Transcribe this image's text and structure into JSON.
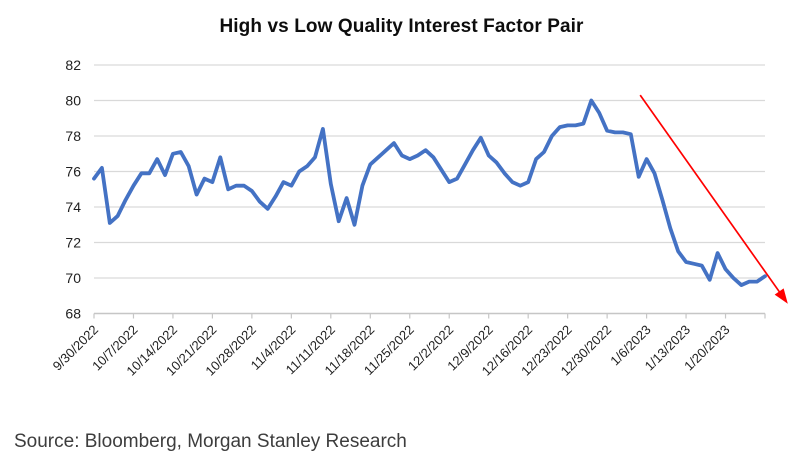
{
  "title": "High vs Low Quality Interest Factor Pair",
  "source_note": "Source: Bloomberg, Morgan Stanley Research",
  "colors": {
    "line": "#4472C4",
    "arrow": "#FF0000",
    "gridline": "#D9D9D9",
    "axis": "#C6C6C6",
    "tick_text": "#1F1F1F",
    "title_text": "#0D0D0D",
    "source_text": "#3D3D3D",
    "background": "#FFFFFF"
  },
  "chart_data": {
    "type": "line",
    "title": "High vs Low Quality Interest Factor Pair",
    "series_name": "High vs Low Quality Interest Factor Pair",
    "x_tick_labels": [
      "9/30/2022",
      "10/7/2022",
      "10/14/2022",
      "10/21/2022",
      "10/28/2022",
      "11/4/2022",
      "11/11/2022",
      "11/18/2022",
      "11/25/2022",
      "12/2/2022",
      "12/9/2022",
      "12/16/2022",
      "12/23/2022",
      "12/30/2022",
      "1/6/2023",
      "1/13/2023",
      "1/20/2023"
    ],
    "points_per_tick": 5,
    "values": [
      75.6,
      76.2,
      73.1,
      73.5,
      74.4,
      75.2,
      75.9,
      75.9,
      76.7,
      75.8,
      77.0,
      77.1,
      76.3,
      74.7,
      75.6,
      75.4,
      76.8,
      75.0,
      75.2,
      75.2,
      74.9,
      74.3,
      73.9,
      74.6,
      75.4,
      75.2,
      76.0,
      76.3,
      76.8,
      78.4,
      75.3,
      73.2,
      74.5,
      73.0,
      75.2,
      76.4,
      76.8,
      77.2,
      77.6,
      76.9,
      76.7,
      76.9,
      77.2,
      76.8,
      76.1,
      75.4,
      75.6,
      76.4,
      77.2,
      77.9,
      76.9,
      76.5,
      75.9,
      75.4,
      75.2,
      75.4,
      76.7,
      77.1,
      78.0,
      78.5,
      78.6,
      78.6,
      78.7,
      80.0,
      79.3,
      78.3,
      78.2,
      78.2,
      78.1,
      75.7,
      76.7,
      75.9,
      74.4,
      72.8,
      71.5,
      70.9,
      70.8,
      70.7,
      69.9,
      71.4,
      70.5,
      70.0,
      69.6,
      69.8,
      69.8,
      70.1
    ],
    "ylim": [
      68,
      82
    ],
    "yticks": [
      68,
      70,
      72,
      74,
      76,
      78,
      80,
      82
    ],
    "grid": "horizontal",
    "legend": "none",
    "annotations": [
      {
        "type": "arrow",
        "color": "#FF0000",
        "from": {
          "x_frac": 0.814,
          "y": 80.3
        },
        "to": {
          "x_frac": 1.034,
          "y": 68.55
        }
      }
    ]
  }
}
